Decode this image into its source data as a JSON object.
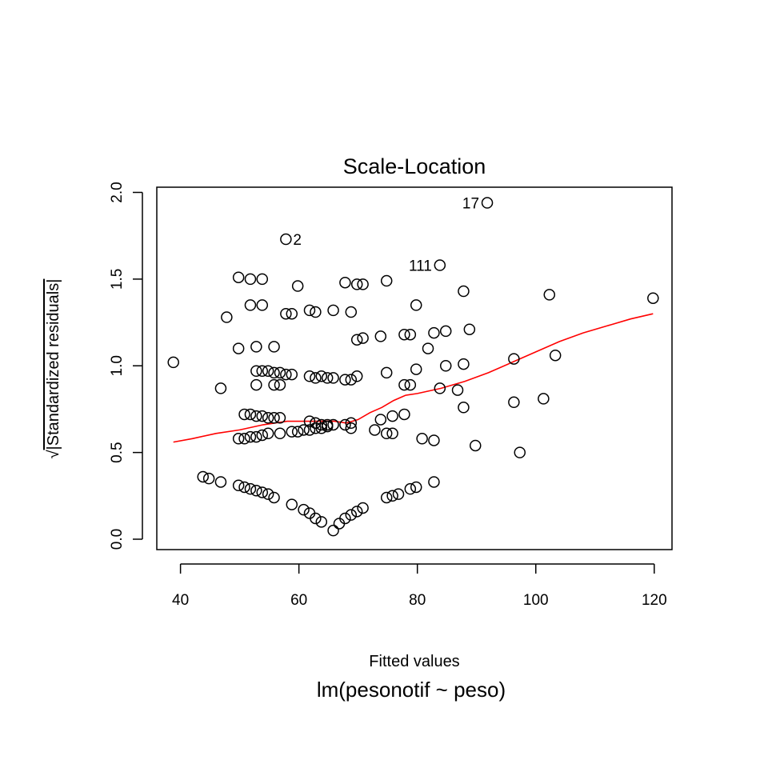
{
  "chart_data": {
    "type": "scatter",
    "title": "Scale-Location",
    "xlabel": "Fitted values",
    "ylabel": "√|Standardized residuals|",
    "ylabel_sqrt": "√",
    "ylabel_text": "|Standardized residuals|",
    "subtitle": "lm(pesonotif ~ peso)",
    "xlim": [
      36,
      123
    ],
    "ylim": [
      -0.06,
      2.03
    ],
    "xticks": [
      40,
      60,
      80,
      100,
      120
    ],
    "yticks": [
      0.0,
      0.5,
      1.0,
      1.5,
      2.0
    ],
    "xtick_labels": [
      "40",
      "60",
      "80",
      "100",
      "120"
    ],
    "ytick_labels": [
      "0.0",
      "0.5",
      "1.0",
      "1.5",
      "2.0"
    ],
    "grid": false,
    "point_color": "#000000",
    "smooth_color": "#ff0000",
    "points": [
      [
        38.8,
        1.02
      ],
      [
        43.8,
        0.36
      ],
      [
        44.8,
        0.35
      ],
      [
        46.8,
        0.33
      ],
      [
        46.8,
        0.87
      ],
      [
        47.8,
        1.28
      ],
      [
        49.8,
        1.51
      ],
      [
        49.8,
        1.1
      ],
      [
        49.8,
        0.58
      ],
      [
        49.8,
        0.31
      ],
      [
        50.8,
        0.72
      ],
      [
        50.8,
        0.58
      ],
      [
        50.8,
        0.3
      ],
      [
        51.8,
        1.5
      ],
      [
        51.8,
        1.35
      ],
      [
        51.8,
        0.72
      ],
      [
        51.8,
        0.59
      ],
      [
        51.8,
        0.29
      ],
      [
        52.8,
        1.11
      ],
      [
        52.8,
        0.97
      ],
      [
        52.8,
        0.89
      ],
      [
        52.8,
        0.71
      ],
      [
        52.8,
        0.59
      ],
      [
        52.8,
        0.28
      ],
      [
        53.8,
        1.5
      ],
      [
        53.8,
        1.35
      ],
      [
        53.8,
        0.97
      ],
      [
        53.8,
        0.71
      ],
      [
        53.8,
        0.6
      ],
      [
        53.8,
        0.27
      ],
      [
        54.8,
        0.97
      ],
      [
        54.8,
        0.7
      ],
      [
        54.8,
        0.61
      ],
      [
        54.8,
        0.26
      ],
      [
        55.8,
        1.11
      ],
      [
        55.8,
        0.96
      ],
      [
        55.8,
        0.89
      ],
      [
        55.8,
        0.7
      ],
      [
        55.8,
        0.24
      ],
      [
        56.8,
        0.96
      ],
      [
        56.8,
        0.89
      ],
      [
        56.8,
        0.7
      ],
      [
        56.8,
        0.61
      ],
      [
        57.8,
        1.73
      ],
      [
        57.8,
        1.3
      ],
      [
        57.8,
        0.95
      ],
      [
        58.8,
        1.3
      ],
      [
        58.8,
        0.95
      ],
      [
        58.8,
        0.62
      ],
      [
        58.8,
        0.2
      ],
      [
        59.8,
        1.46
      ],
      [
        59.8,
        0.62
      ],
      [
        60.8,
        0.63
      ],
      [
        60.8,
        0.17
      ],
      [
        61.8,
        1.32
      ],
      [
        61.8,
        0.94
      ],
      [
        61.8,
        0.68
      ],
      [
        61.8,
        0.63
      ],
      [
        61.8,
        0.15
      ],
      [
        62.8,
        1.31
      ],
      [
        62.8,
        0.93
      ],
      [
        62.8,
        0.67
      ],
      [
        62.8,
        0.64
      ],
      [
        62.8,
        0.12
      ],
      [
        63.8,
        0.94
      ],
      [
        63.8,
        0.66
      ],
      [
        63.8,
        0.64
      ],
      [
        63.8,
        0.1
      ],
      [
        64.8,
        0.93
      ],
      [
        64.8,
        0.66
      ],
      [
        64.8,
        0.65
      ],
      [
        65.8,
        1.32
      ],
      [
        65.8,
        0.93
      ],
      [
        65.8,
        0.66
      ],
      [
        65.8,
        0.05
      ],
      [
        66.8,
        0.09
      ],
      [
        67.8,
        1.48
      ],
      [
        67.8,
        0.92
      ],
      [
        67.8,
        0.66
      ],
      [
        67.8,
        0.12
      ],
      [
        68.8,
        1.31
      ],
      [
        68.8,
        0.92
      ],
      [
        68.8,
        0.67
      ],
      [
        68.8,
        0.64
      ],
      [
        68.8,
        0.14
      ],
      [
        69.8,
        1.47
      ],
      [
        69.8,
        1.15
      ],
      [
        69.8,
        0.94
      ],
      [
        69.8,
        0.16
      ],
      [
        70.8,
        1.47
      ],
      [
        70.8,
        1.16
      ],
      [
        70.8,
        0.18
      ],
      [
        72.8,
        0.63
      ],
      [
        73.8,
        1.17
      ],
      [
        73.8,
        0.69
      ],
      [
        74.8,
        1.49
      ],
      [
        74.8,
        0.96
      ],
      [
        74.8,
        0.61
      ],
      [
        74.8,
        0.24
      ],
      [
        75.8,
        0.71
      ],
      [
        75.8,
        0.61
      ],
      [
        75.8,
        0.25
      ],
      [
        76.8,
        0.26
      ],
      [
        77.8,
        1.18
      ],
      [
        77.8,
        0.89
      ],
      [
        77.8,
        0.72
      ],
      [
        78.8,
        1.18
      ],
      [
        78.8,
        0.89
      ],
      [
        78.8,
        0.29
      ],
      [
        79.8,
        1.35
      ],
      [
        79.8,
        0.98
      ],
      [
        79.8,
        0.3
      ],
      [
        80.8,
        0.58
      ],
      [
        81.8,
        1.1
      ],
      [
        82.8,
        1.19
      ],
      [
        82.8,
        0.57
      ],
      [
        82.8,
        0.33
      ],
      [
        83.8,
        1.58
      ],
      [
        83.8,
        0.87
      ],
      [
        84.8,
        1.2
      ],
      [
        84.8,
        1.0
      ],
      [
        86.8,
        0.86
      ],
      [
        87.8,
        1.43
      ],
      [
        87.8,
        1.01
      ],
      [
        87.8,
        0.76
      ],
      [
        88.8,
        1.21
      ],
      [
        89.8,
        0.54
      ],
      [
        91.8,
        1.94
      ],
      [
        96.3,
        1.04
      ],
      [
        96.3,
        0.79
      ],
      [
        97.3,
        0.5
      ],
      [
        101.3,
        0.81
      ],
      [
        102.3,
        1.41
      ],
      [
        103.3,
        1.06
      ],
      [
        119.8,
        1.39
      ]
    ],
    "smooth": [
      [
        38.8,
        0.56
      ],
      [
        42,
        0.58
      ],
      [
        46,
        0.61
      ],
      [
        50,
        0.63
      ],
      [
        54,
        0.66
      ],
      [
        58,
        0.68
      ],
      [
        62,
        0.68
      ],
      [
        66,
        0.68
      ],
      [
        68,
        0.67
      ],
      [
        70,
        0.69
      ],
      [
        72,
        0.73
      ],
      [
        74,
        0.76
      ],
      [
        76,
        0.8
      ],
      [
        78,
        0.83
      ],
      [
        80,
        0.84
      ],
      [
        84,
        0.87
      ],
      [
        88,
        0.91
      ],
      [
        92,
        0.96
      ],
      [
        96,
        1.02
      ],
      [
        100,
        1.08
      ],
      [
        104,
        1.14
      ],
      [
        108,
        1.19
      ],
      [
        112,
        1.23
      ],
      [
        116,
        1.27
      ],
      [
        119.8,
        1.3
      ]
    ],
    "point_labels": [
      {
        "text": "17",
        "x": 91.8,
        "y": 1.94
      },
      {
        "text": "2",
        "x": 57.8,
        "y": 1.73
      },
      {
        "text": "111",
        "x": 83.8,
        "y": 1.58
      }
    ]
  }
}
